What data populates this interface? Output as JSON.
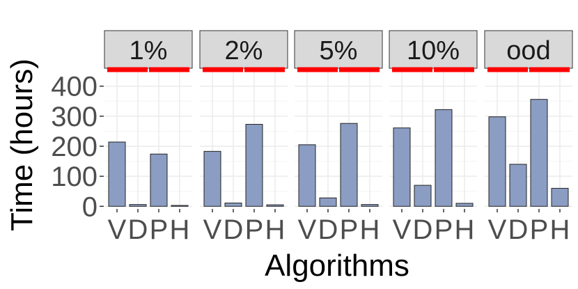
{
  "chart_data": {
    "type": "bar",
    "facets": [
      "1%",
      "2%",
      "5%",
      "10%",
      "ood"
    ],
    "categories": [
      "V",
      "D",
      "P",
      "H"
    ],
    "values": [
      [
        214,
        6,
        174,
        3
      ],
      [
        183,
        11,
        273,
        5
      ],
      [
        205,
        28,
        276,
        6
      ],
      [
        261,
        70,
        322,
        10
      ],
      [
        298,
        140,
        356,
        60
      ]
    ],
    "xlabel": "Algorithms",
    "ylabel": "Time (hours)",
    "ylim": [
      -4,
      455
    ],
    "yticks": [
      0,
      100,
      200,
      300,
      400
    ],
    "reference_lines": [
      {
        "categories": [
          "V",
          "D"
        ],
        "value": 455
      },
      {
        "categories": [
          "P",
          "H"
        ],
        "value": 455
      }
    ],
    "grid": true,
    "colors": {
      "bar_fill": "#8b9dc3",
      "bar_stroke": "#222222",
      "reference_line": "#ff0000",
      "strip_fill": "#d9d9d9",
      "grid_major": "#ebebeb",
      "grid_minor": "#f4f4f4",
      "tick_text": "#4d4d4d",
      "axis_title": "#000000"
    }
  }
}
